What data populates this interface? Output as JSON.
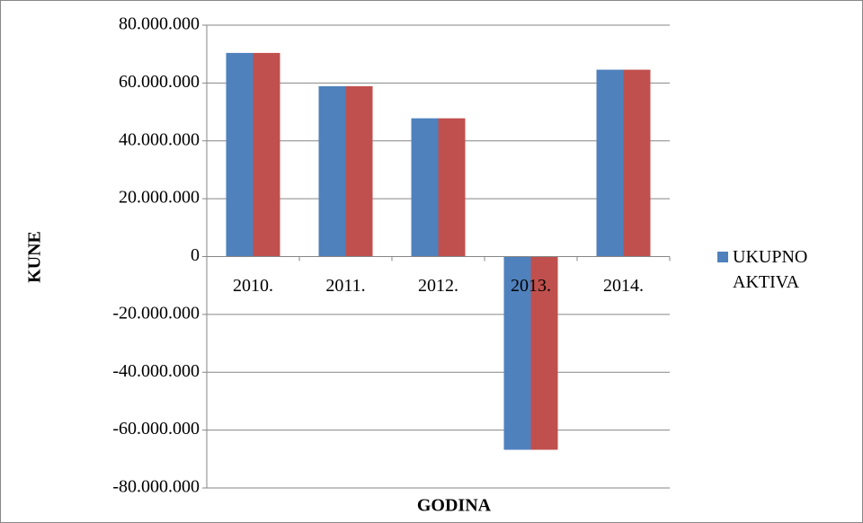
{
  "chart_data": {
    "type": "bar",
    "x_label": "GODINA",
    "y_label": "KUNE",
    "categories": [
      "2010.",
      "2011.",
      "2012.",
      "2013.",
      "2014."
    ],
    "series": [
      {
        "name": "UKUPNO AKTIVA",
        "color": "#4f81bd",
        "values": [
          70400000,
          58900000,
          47800000,
          -66800000,
          64600000
        ]
      },
      {
        "color": "#c0504d",
        "values": [
          70400000,
          58900000,
          47800000,
          -66800000,
          64600000
        ]
      }
    ],
    "ylim": [
      -80000000,
      80000000
    ],
    "yticks": [
      {
        "value": -80000000,
        "label": "-80.000.000"
      },
      {
        "value": -60000000,
        "label": "-60.000.000"
      },
      {
        "value": -40000000,
        "label": "-40.000.000"
      },
      {
        "value": -20000000,
        "label": "-20.000.000"
      },
      0,
      {
        "value": 20000000,
        "label": "20.000.000"
      },
      {
        "value": 40000000,
        "label": "40.000.000"
      },
      {
        "value": 60000000,
        "label": "60.000.000"
      },
      {
        "value": 80000000,
        "label": "80.000.000"
      }
    ],
    "grid": true,
    "legend": "right"
  }
}
